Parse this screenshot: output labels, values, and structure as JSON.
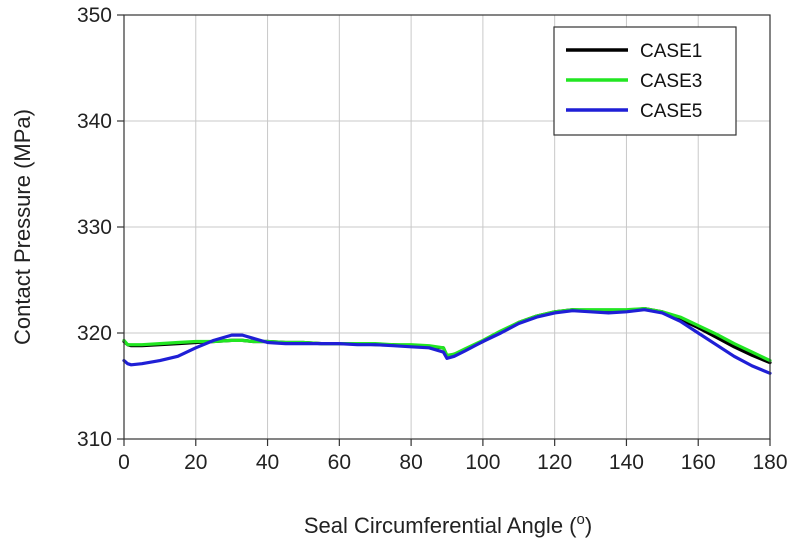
{
  "chart_data": {
    "type": "line",
    "title": "",
    "xlabel": "Seal Circumferential Angle (",
    "xlabel_superscript": "o",
    "xlabel_suffix": ")",
    "ylabel": "Contact Pressure (MPa)",
    "xlim": [
      0,
      180
    ],
    "ylim": [
      310,
      350
    ],
    "xticks": [
      0,
      20,
      40,
      60,
      80,
      100,
      120,
      140,
      160,
      180
    ],
    "yticks": [
      310,
      320,
      330,
      340,
      350
    ],
    "grid": true,
    "legend_position": "top-right",
    "series": [
      {
        "name": "CASE1",
        "color": "#000000",
        "x": [
          0,
          1,
          2,
          5,
          10,
          15,
          20,
          25,
          30,
          33,
          36,
          40,
          45,
          50,
          55,
          60,
          65,
          70,
          75,
          80,
          85,
          89,
          90,
          92,
          95,
          100,
          105,
          110,
          115,
          120,
          125,
          130,
          135,
          140,
          145,
          150,
          155,
          160,
          165,
          170,
          175,
          180
        ],
        "y": [
          319.2,
          318.9,
          318.8,
          318.8,
          318.9,
          319.0,
          319.1,
          319.2,
          319.3,
          319.3,
          319.2,
          319.2,
          319.1,
          319.1,
          319.0,
          319.0,
          319.0,
          318.9,
          318.9,
          318.8,
          318.7,
          318.6,
          317.8,
          318.0,
          318.4,
          319.2,
          320.1,
          321.0,
          321.6,
          322.0,
          322.2,
          322.1,
          322.0,
          322.1,
          322.3,
          322.0,
          321.3,
          320.5,
          319.6,
          318.7,
          317.9,
          317.2
        ]
      },
      {
        "name": "CASE3",
        "color": "#22e622",
        "x": [
          0,
          1,
          2,
          5,
          10,
          15,
          20,
          25,
          30,
          33,
          36,
          40,
          45,
          50,
          55,
          60,
          65,
          70,
          75,
          80,
          85,
          89,
          90,
          92,
          95,
          100,
          105,
          110,
          115,
          120,
          125,
          130,
          135,
          140,
          145,
          150,
          155,
          160,
          165,
          170,
          175,
          180
        ],
        "y": [
          319.3,
          318.9,
          318.9,
          318.9,
          319.0,
          319.1,
          319.2,
          319.2,
          319.3,
          319.3,
          319.2,
          319.2,
          319.1,
          319.1,
          319.0,
          319.0,
          319.0,
          319.0,
          318.9,
          318.9,
          318.8,
          318.6,
          317.9,
          318.0,
          318.5,
          319.3,
          320.2,
          321.0,
          321.6,
          322.0,
          322.2,
          322.2,
          322.2,
          322.2,
          322.3,
          322.0,
          321.5,
          320.7,
          319.9,
          319.0,
          318.2,
          317.4
        ]
      },
      {
        "name": "CASE5",
        "color": "#1f1fd6",
        "x": [
          0,
          1,
          2,
          5,
          10,
          15,
          20,
          25,
          30,
          33,
          36,
          40,
          45,
          50,
          55,
          60,
          65,
          70,
          75,
          80,
          85,
          89,
          90,
          92,
          95,
          100,
          105,
          110,
          115,
          120,
          125,
          130,
          135,
          140,
          145,
          150,
          155,
          160,
          165,
          170,
          175,
          180
        ],
        "y": [
          317.4,
          317.1,
          317.0,
          317.1,
          317.4,
          317.8,
          318.6,
          319.3,
          319.8,
          319.8,
          319.5,
          319.1,
          319.0,
          319.0,
          319.0,
          319.0,
          318.9,
          318.9,
          318.8,
          318.7,
          318.6,
          318.2,
          317.6,
          317.8,
          318.3,
          319.2,
          320.0,
          320.9,
          321.5,
          321.9,
          322.1,
          322.0,
          321.9,
          322.0,
          322.2,
          321.9,
          321.1,
          320.0,
          318.9,
          317.8,
          316.9,
          316.2
        ]
      }
    ]
  }
}
